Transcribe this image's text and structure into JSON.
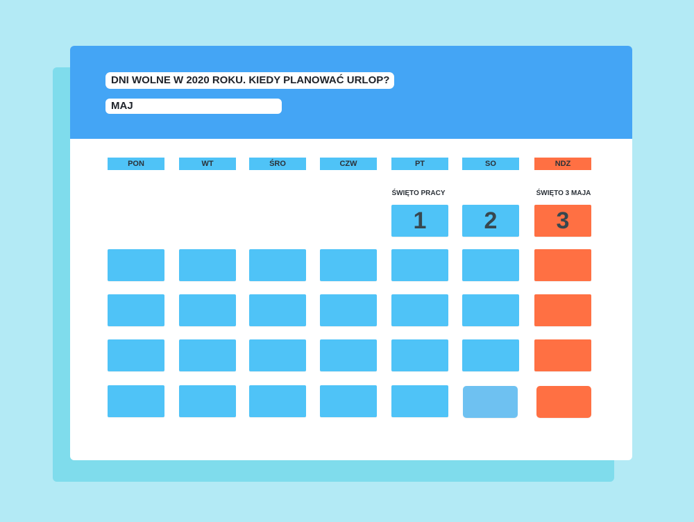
{
  "header": {
    "title": "DNI WOLNE W 2020 ROKU. KIEDY PLANOWAĆ URLOP?",
    "month": "MAJ"
  },
  "weekdays": [
    "PON",
    "WT",
    "ŚRO",
    "CZW",
    "PT",
    "SO",
    "NDZ"
  ],
  "holidays": {
    "friday": "ŚWIĘTO PRACY",
    "sunday": "ŚWIĘTO 3 MAJA"
  },
  "first_week": {
    "fri": "1",
    "sat": "2",
    "sun": "3"
  },
  "colors": {
    "page_background": "#b3eaf5",
    "header": "#44a5f5",
    "day_cell": "#4fc3f7",
    "sunday_cell": "#ff7043"
  }
}
